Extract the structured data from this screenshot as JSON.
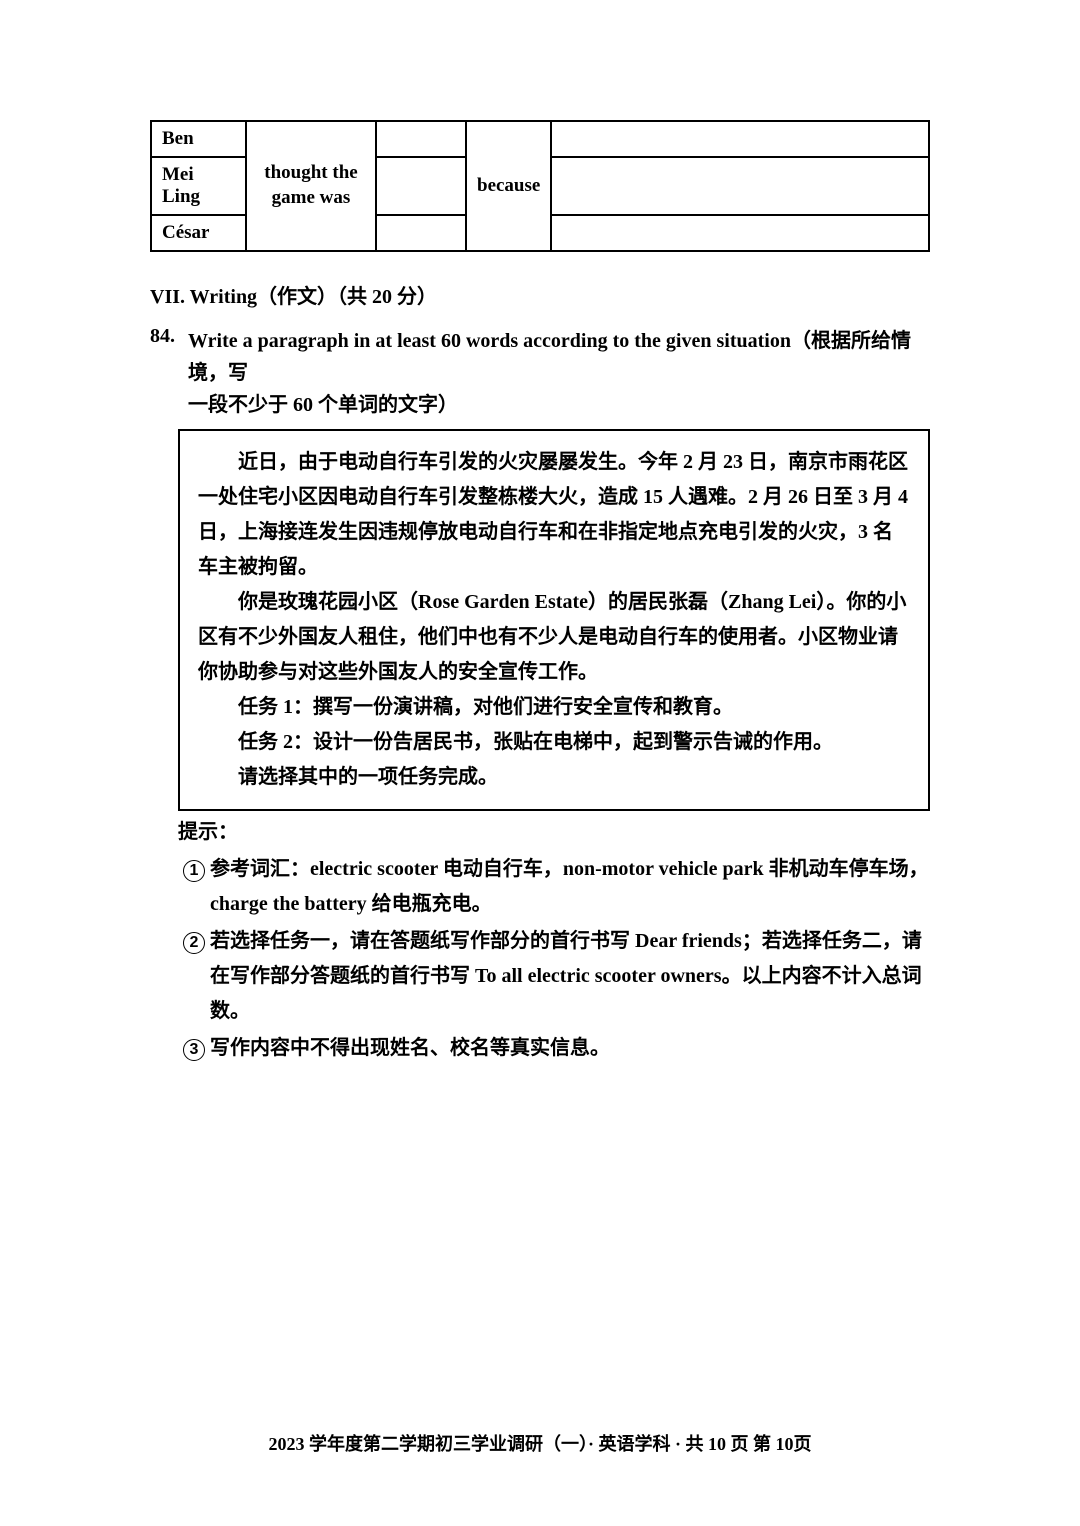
{
  "table": {
    "rows": [
      "Ben",
      "Mei Ling",
      "César"
    ],
    "thought": "thought the game was",
    "because": "because"
  },
  "section": {
    "heading": "VII. Writing（作文）（共 20 分）"
  },
  "question": {
    "number": "84.",
    "line1": "Write a paragraph in at least 60 words according to the given situation（根据所给情境，写",
    "line2": "一段不少于 60 个单词的文字）"
  },
  "passage": {
    "p1": "近日，由于电动自行车引发的火灾屡屡发生。今年 2 月 23 日，南京市雨花区一处住宅小区因电动自行车引发整栋楼大火，造成 15 人遇难。2 月 26 日至 3 月 4 日，上海接连发生因违规停放电动自行车和在非指定地点充电引发的火灾，3 名车主被拘留。",
    "p2": "你是玫瑰花园小区（Rose Garden Estate）的居民张磊（Zhang Lei）。你的小区有不少外国友人租住，他们中也有不少人是电动自行车的使用者。小区物业请你协助参与对这些外国友人的安全宣传工作。",
    "p3": "任务 1：撰写一份演讲稿，对他们进行安全宣传和教育。",
    "p4": "任务 2：设计一份告居民书，张贴在电梯中，起到警示告诫的作用。",
    "p5": "请选择其中的一项任务完成。"
  },
  "tips": {
    "label": "提示：",
    "items": [
      "参考词汇：electric scooter 电动自行车，non-motor vehicle park 非机动车停车场，charge the battery 给电瓶充电。",
      "若选择任务一，请在答题纸写作部分的首行书写 Dear friends；若选择任务二，请在写作部分答题纸的首行书写 To all electric scooter owners。以上内容不计入总词数。",
      "写作内容中不得出现姓名、校名等真实信息。"
    ]
  },
  "footer": "2023 学年度第二学期初三学业调研（一）· 英语学科 · 共 10 页  第 10页"
}
